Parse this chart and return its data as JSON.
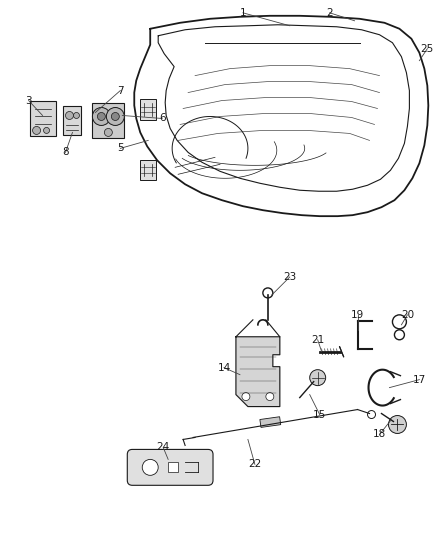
{
  "background_color": "#ffffff",
  "figsize": [
    4.38,
    5.33
  ],
  "dpi": 100,
  "line_color": "#1a1a1a",
  "label_fontsize": 7.5,
  "leader_line_color": "#444444"
}
